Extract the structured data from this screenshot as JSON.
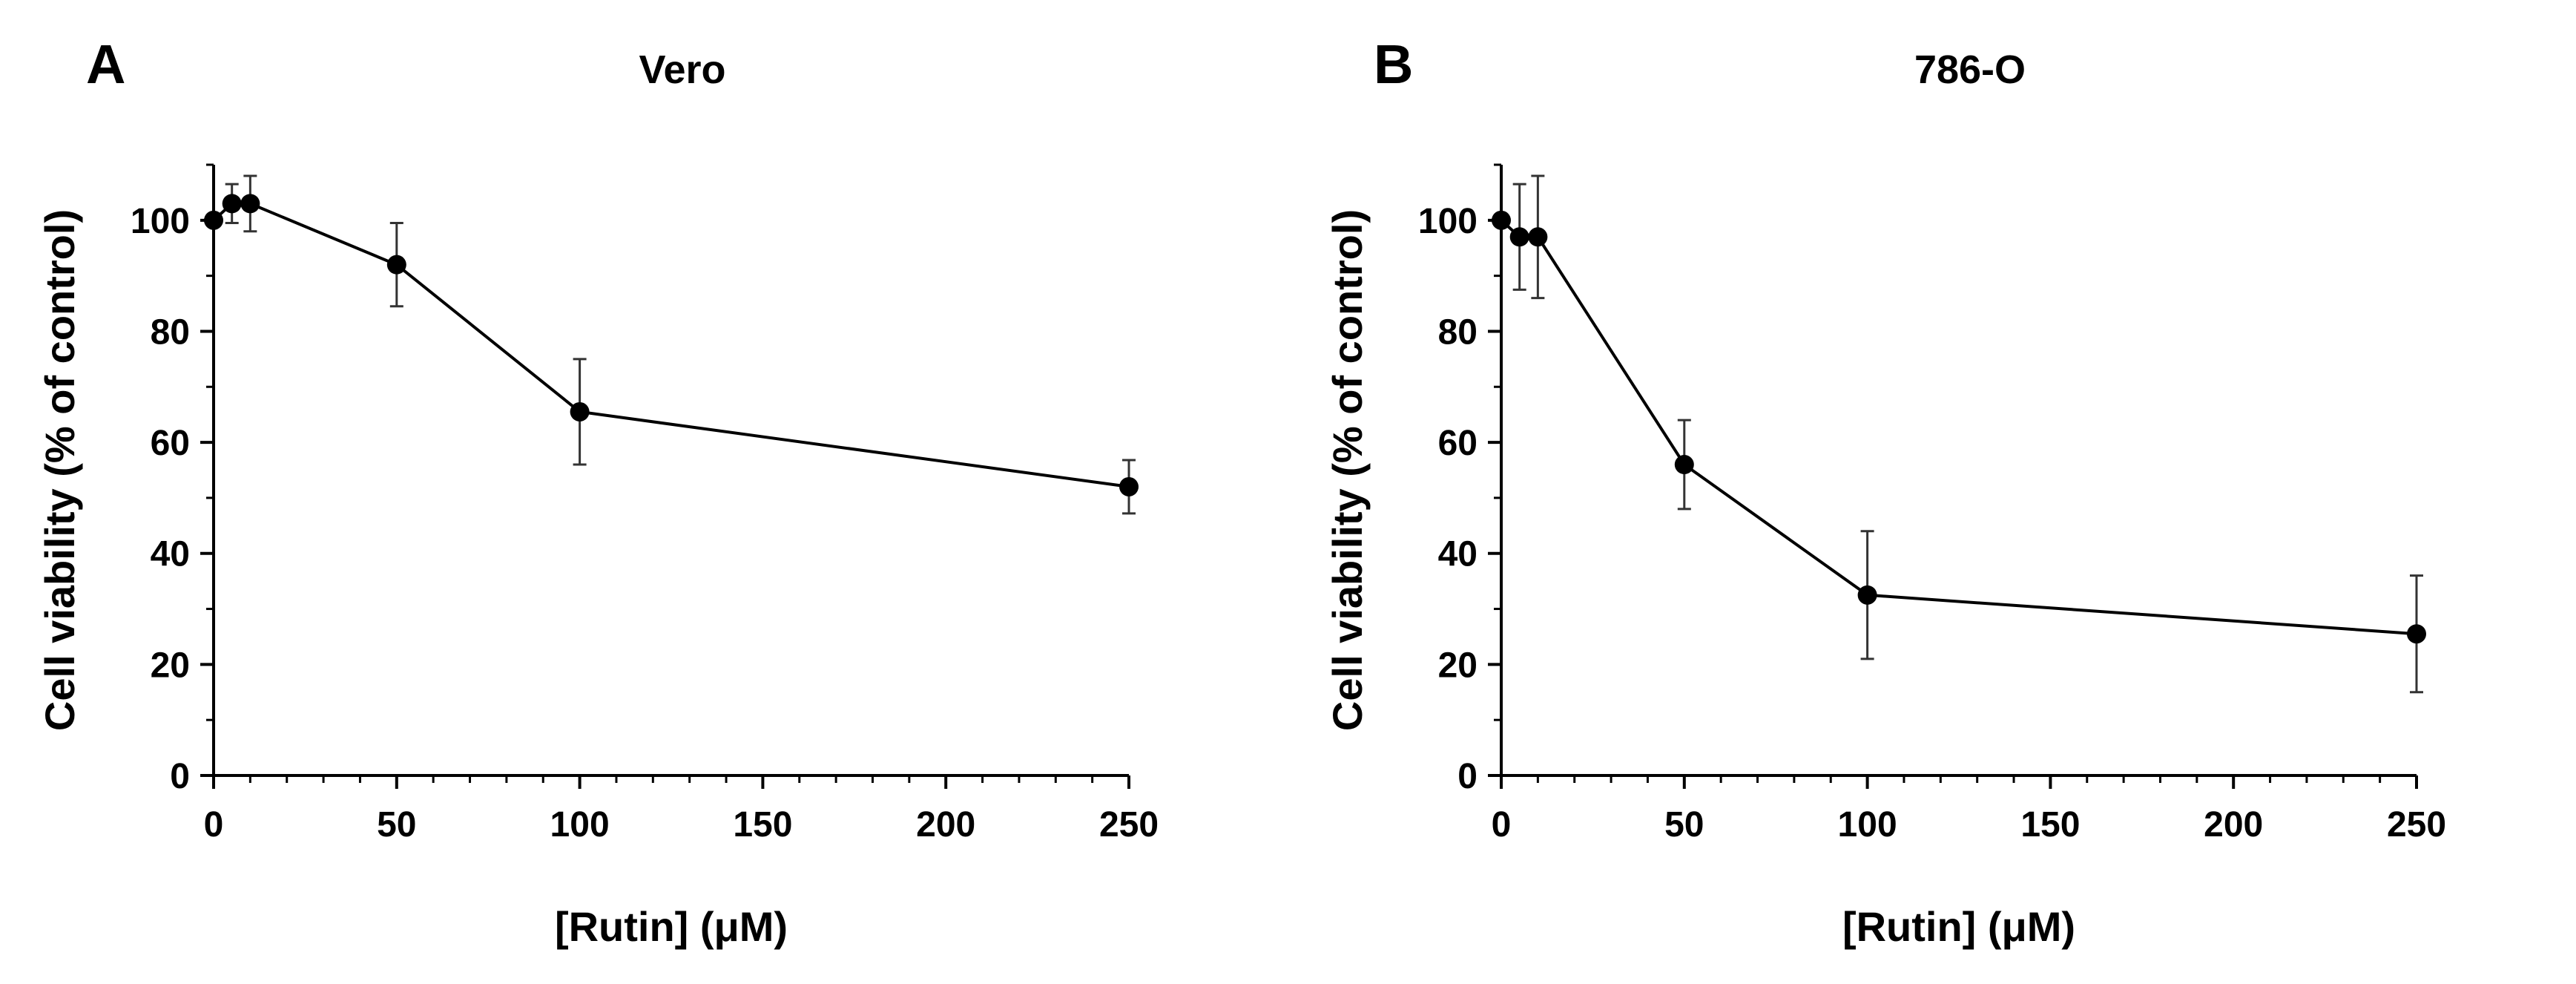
{
  "chart_data": [
    {
      "type": "line",
      "panel_label": "A",
      "title": "Vero",
      "xlabel": "[Rutin] (μM)",
      "ylabel": "Cell viability (% of control)",
      "xlim": [
        0,
        250
      ],
      "ylim": [
        0,
        110
      ],
      "xticks": [
        "0",
        "50",
        "100",
        "150",
        "200",
        "250"
      ],
      "yticks": [
        "0",
        "20",
        "40",
        "60",
        "80",
        "100"
      ],
      "grid": false,
      "series": [
        {
          "name": "Vero",
          "x": [
            0,
            5,
            10,
            50,
            100,
            250
          ],
          "y": [
            100,
            103,
            103,
            92,
            65.5,
            52
          ],
          "error": [
            0,
            3.5,
            5,
            7.5,
            9.5,
            4.8
          ]
        }
      ]
    },
    {
      "type": "line",
      "panel_label": "B",
      "title": "786-O",
      "xlabel": "[Rutin] (μM)",
      "ylabel": "Cell viability (% of control)",
      "xlim": [
        0,
        250
      ],
      "ylim": [
        0,
        110
      ],
      "xticks": [
        "0",
        "50",
        "100",
        "150",
        "200",
        "250"
      ],
      "yticks": [
        "0",
        "20",
        "40",
        "60",
        "80",
        "100"
      ],
      "grid": false,
      "series": [
        {
          "name": "786-O",
          "x": [
            0,
            5,
            10,
            50,
            100,
            250
          ],
          "y": [
            100,
            97,
            97,
            56,
            32.5,
            25.5
          ],
          "error": [
            0,
            9.5,
            11,
            8,
            11.5,
            10.5
          ]
        }
      ]
    }
  ]
}
